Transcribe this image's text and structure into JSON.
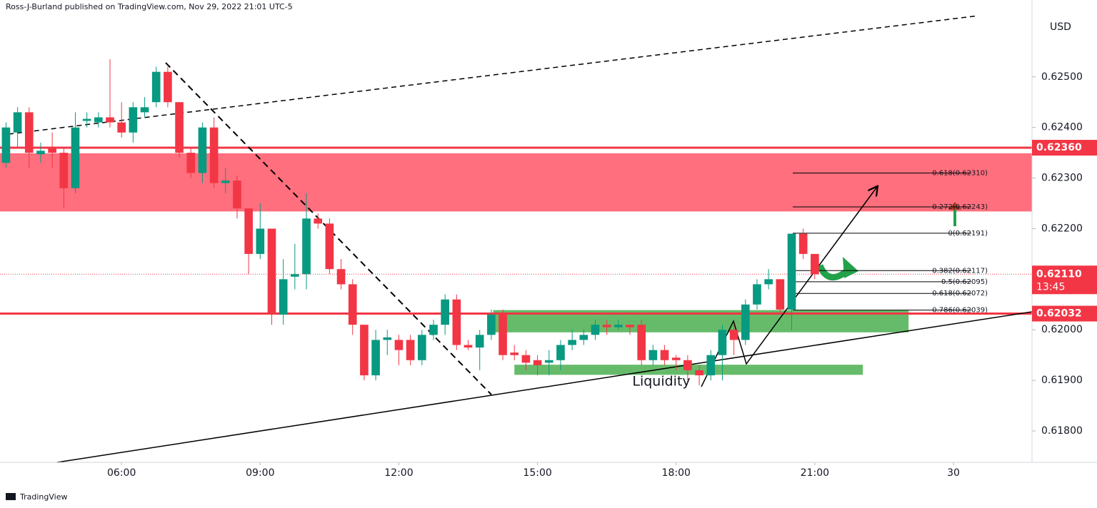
{
  "header": "Ross-J-Burland published on TradingView.com, Nov 29, 2022 21:01 UTC-5",
  "footer": "TradingView",
  "chart_data": {
    "type": "candlestick",
    "currency": "USD",
    "x": [
      3.5,
      3.75,
      4,
      4.25,
      4.5,
      4.75,
      5,
      5.25,
      5.5,
      5.75,
      6,
      6.25,
      6.5,
      6.75,
      7,
      7.25,
      7.5,
      7.75,
      8,
      8.25,
      8.5,
      8.75,
      9,
      9.25,
      9.5,
      9.75,
      10,
      10.25,
      10.5,
      10.75,
      11,
      11.25,
      11.5,
      11.75,
      12,
      12.25,
      12.5,
      12.75,
      13,
      13.25,
      13.5,
      13.75,
      14,
      14.25,
      14.5,
      14.75,
      15,
      15.25,
      15.5,
      15.75,
      16,
      16.25,
      16.5,
      16.75,
      17,
      17.25,
      17.5,
      17.75,
      18,
      18.25,
      18.5,
      18.75,
      19,
      19.25,
      19.5,
      19.75,
      20,
      20.25,
      20.5,
      20.75,
      21
    ],
    "open": [
      0.6233,
      0.6239,
      0.6243,
      0.62347,
      0.6236,
      0.6235,
      0.6228,
      0.62413,
      0.6241,
      0.6242,
      0.6241,
      0.6239,
      0.6243,
      0.6245,
      0.6251,
      0.6245,
      0.6235,
      0.6231,
      0.624,
      0.6229,
      0.62295,
      0.6224,
      0.6215,
      0.622,
      0.6203,
      0.62105,
      0.6211,
      0.6222,
      0.6221,
      0.6212,
      0.6209,
      0.6201,
      0.6191,
      0.6198,
      0.6198,
      0.6198,
      0.6194,
      0.6199,
      0.6201,
      0.6206,
      0.6197,
      0.61965,
      0.6199,
      0.6203,
      0.61955,
      0.6195,
      0.6194,
      0.61935,
      0.6194,
      0.6197,
      0.6198,
      0.6199,
      0.6201,
      0.62005,
      0.6201,
      0.6201,
      0.6194,
      0.6196,
      0.61945,
      0.6194,
      0.6192,
      0.6191,
      0.6195,
      0.62,
      0.6198,
      0.6205,
      0.6209,
      0.621,
      0.6204,
      0.6219,
      0.6215
    ],
    "high": [
      0.6241,
      0.6244,
      0.6244,
      0.6237,
      0.6239,
      0.6236,
      0.6243,
      0.6243,
      0.6243,
      0.62535,
      0.6245,
      0.6245,
      0.6246,
      0.6252,
      0.6252,
      0.6245,
      0.6236,
      0.6241,
      0.6242,
      0.6232,
      0.62305,
      0.6224,
      0.6225,
      0.622,
      0.6214,
      0.6217,
      0.6227,
      0.6223,
      0.6222,
      0.6214,
      0.621,
      0.6201,
      0.62,
      0.62,
      0.6199,
      0.6199,
      0.62,
      0.6202,
      0.6207,
      0.6207,
      0.6198,
      0.62,
      0.6204,
      0.6204,
      0.6197,
      0.6196,
      0.6195,
      0.6196,
      0.6198,
      0.62,
      0.62,
      0.6202,
      0.6202,
      0.6202,
      0.6201,
      0.6202,
      0.6197,
      0.6197,
      0.6195,
      0.6195,
      0.6193,
      0.6196,
      0.6201,
      0.6201,
      0.6206,
      0.621,
      0.6212,
      0.621,
      0.6219,
      0.622,
      0.6215
    ],
    "low": [
      0.6232,
      0.6236,
      0.6232,
      0.6233,
      0.6232,
      0.6224,
      0.6227,
      0.624,
      0.624,
      0.624,
      0.6238,
      0.6237,
      0.6242,
      0.6244,
      0.6244,
      0.6234,
      0.623,
      0.6229,
      0.6228,
      0.6227,
      0.6222,
      0.6211,
      0.6214,
      0.6201,
      0.6201,
      0.6208,
      0.6208,
      0.622,
      0.6211,
      0.6208,
      0.6199,
      0.619,
      0.619,
      0.6195,
      0.6193,
      0.6193,
      0.6193,
      0.6198,
      0.6199,
      0.6196,
      0.6196,
      0.6192,
      0.6198,
      0.6194,
      0.6194,
      0.6192,
      0.6191,
      0.6191,
      0.6192,
      0.6196,
      0.6197,
      0.6198,
      0.6199,
      0.62,
      0.6199,
      0.6193,
      0.6193,
      0.6193,
      0.6192,
      0.619,
      0.6189,
      0.619,
      0.619,
      0.6195,
      0.6197,
      0.6204,
      0.6208,
      0.6203,
      0.62,
      0.6214,
      0.621
    ],
    "close": [
      0.624,
      0.6243,
      0.6235,
      0.62354,
      0.6235,
      0.6228,
      0.624,
      0.62417,
      0.6242,
      0.6241,
      0.6239,
      0.6244,
      0.6244,
      0.6251,
      0.6245,
      0.6235,
      0.6231,
      0.624,
      0.6229,
      0.62295,
      0.6224,
      0.6215,
      0.622,
      0.6203,
      0.621,
      0.6211,
      0.6222,
      0.6221,
      0.6212,
      0.6209,
      0.6201,
      0.6191,
      0.6198,
      0.61985,
      0.6196,
      0.6194,
      0.6199,
      0.6201,
      0.6206,
      0.6197,
      0.61965,
      0.6199,
      0.6203,
      0.6195,
      0.6195,
      0.61935,
      0.6193,
      0.6194,
      0.6197,
      0.6198,
      0.6199,
      0.6201,
      0.62005,
      0.6201,
      0.62005,
      0.6194,
      0.6196,
      0.6194,
      0.6194,
      0.6192,
      0.6191,
      0.6195,
      0.62,
      0.6198,
      0.6205,
      0.6209,
      0.621,
      0.6204,
      0.6219,
      0.6215,
      0.6211
    ],
    "up_color": "#089981",
    "down_color": "#f23645",
    "xlim": [
      3.37,
      25.7
    ],
    "ylim": [
      0.61738,
      0.62652
    ],
    "xticks": [
      {
        "value": 6,
        "label": "06:00"
      },
      {
        "value": 9,
        "label": "09:00"
      },
      {
        "value": 12,
        "label": "12:00"
      },
      {
        "value": 15,
        "label": "15:00"
      },
      {
        "value": 18,
        "label": "18:00"
      },
      {
        "value": 21,
        "label": "21:00"
      },
      {
        "value": 24,
        "label": "30"
      }
    ],
    "yticks": [
      {
        "value": 0.618,
        "label": "0.61800"
      },
      {
        "value": 0.619,
        "label": "0.61900"
      },
      {
        "value": 0.62,
        "label": "0.62000"
      },
      {
        "value": 0.622,
        "label": "0.62200"
      },
      {
        "value": 0.623,
        "label": "0.62300"
      },
      {
        "value": 0.624,
        "label": "0.62400"
      },
      {
        "value": 0.625,
        "label": "0.62500"
      }
    ],
    "price_lines": [
      {
        "value": 0.6236,
        "label": "0.62360"
      },
      {
        "value": 0.62032,
        "label": "0.62032"
      }
    ],
    "last_price": {
      "value": 0.6211,
      "label": "0.62110"
    },
    "countdown": "13:45",
    "zones": [
      {
        "ylim": [
          0.62234,
          0.62349
        ],
        "xlim": [
          3.37,
          25.7
        ],
        "color": "#ff6f7d"
      },
      {
        "ylim": [
          0.61995,
          0.62039
        ],
        "xlim": [
          14.04,
          23.03
        ],
        "color": "#66bb6a"
      },
      {
        "ylim": [
          0.61911,
          0.61931
        ],
        "xlim": [
          14.5,
          22.04
        ],
        "color": "#66bb6a"
      }
    ],
    "fib_levels": [
      {
        "value": 0.6231,
        "label": "-0.618(0.62310)"
      },
      {
        "value": 0.62243,
        "label": "-0.272(0.62243)"
      },
      {
        "value": 0.62191,
        "label": "0(0.62191)"
      },
      {
        "value": 0.62117,
        "label": "0.382(0.62117)"
      },
      {
        "value": 0.62095,
        "label": "0.5(0.62095)"
      },
      {
        "value": 0.62072,
        "label": "0.618(0.62072)"
      },
      {
        "value": 0.62039,
        "label": "0.786(0.62039)"
      }
    ],
    "annotation": "Liquidity"
  }
}
